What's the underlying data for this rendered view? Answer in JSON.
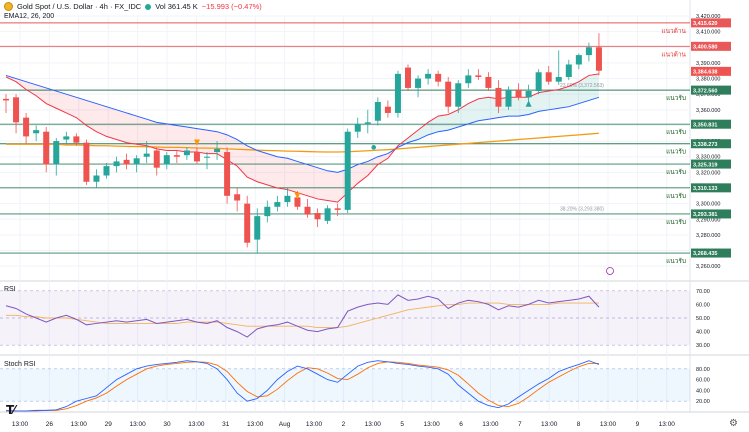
{
  "header": {
    "symbol": "Gold Spot / U.S. Dollar · 4h · FX_IDC",
    "volume": "Vol 361.45 K",
    "change": "−15.993 (−0.47%)",
    "ema_label": "EMA12, 26, 200"
  },
  "colors": {
    "up": "#26a69a",
    "down": "#ef5350",
    "ema12": "#f23645",
    "ema26": "#2962ff",
    "ema200": "#f29b12",
    "support": "#2e7d5b",
    "resistance": "#e85858",
    "rsi_line": "#7e57c2",
    "rsi_ma": "#f2b35b",
    "stoch_k": "#2962ff",
    "stoch_d": "#ff6d00"
  },
  "chart_data": [
    {
      "type": "candlestick",
      "ylim": [
        3255,
        3420
      ],
      "y_ticks": [
        3260,
        3270,
        3280,
        3290,
        3300,
        3310,
        3320,
        3330,
        3340,
        3350,
        3360,
        3370,
        3380,
        3390,
        3400,
        3410,
        3420
      ],
      "x_tick_labels": [
        "13:00",
        "26",
        "13:00",
        "29",
        "13:00",
        "30",
        "13:00",
        "31",
        "13:00",
        "Aug",
        "13:00",
        "2",
        "13:00",
        "5",
        "13:00",
        "6",
        "13:00",
        "7",
        "13:00",
        "8",
        "13:00",
        "9",
        "13:00"
      ],
      "candles": [
        {
          "o": 3367,
          "h": 3370,
          "l": 3358,
          "c": 3366
        },
        {
          "o": 3368,
          "h": 3370,
          "l": 3345,
          "c": 3352
        },
        {
          "o": 3355,
          "h": 3358,
          "l": 3338,
          "c": 3343
        },
        {
          "o": 3345,
          "h": 3350,
          "l": 3340,
          "c": 3347
        },
        {
          "o": 3346,
          "h": 3349,
          "l": 3320,
          "c": 3325
        },
        {
          "o": 3325,
          "h": 3342,
          "l": 3318,
          "c": 3340
        },
        {
          "o": 3341,
          "h": 3346,
          "l": 3338,
          "c": 3343
        },
        {
          "o": 3343,
          "h": 3345,
          "l": 3337,
          "c": 3339
        },
        {
          "o": 3339,
          "h": 3341,
          "l": 3312,
          "c": 3314
        },
        {
          "o": 3314,
          "h": 3322,
          "l": 3310,
          "c": 3318
        },
        {
          "o": 3318,
          "h": 3326,
          "l": 3316,
          "c": 3324
        },
        {
          "o": 3324,
          "h": 3330,
          "l": 3320,
          "c": 3327
        },
        {
          "o": 3328,
          "h": 3332,
          "l": 3322,
          "c": 3325
        },
        {
          "o": 3325,
          "h": 3331,
          "l": 3320,
          "c": 3329
        },
        {
          "o": 3330,
          "h": 3340,
          "l": 3326,
          "c": 3332
        },
        {
          "o": 3334,
          "h": 3336,
          "l": 3318,
          "c": 3323
        },
        {
          "o": 3325,
          "h": 3333,
          "l": 3322,
          "c": 3331
        },
        {
          "o": 3331,
          "h": 3334,
          "l": 3326,
          "c": 3330
        },
        {
          "o": 3331,
          "h": 3336,
          "l": 3328,
          "c": 3334
        },
        {
          "o": 3333,
          "h": 3336,
          "l": 3325,
          "c": 3327
        },
        {
          "o": 3330,
          "h": 3333,
          "l": 3322,
          "c": 3330
        },
        {
          "o": 3333,
          "h": 3340,
          "l": 3328,
          "c": 3335
        },
        {
          "o": 3333,
          "h": 3336,
          "l": 3300,
          "c": 3305
        },
        {
          "o": 3306,
          "h": 3310,
          "l": 3295,
          "c": 3302
        },
        {
          "o": 3300,
          "h": 3305,
          "l": 3272,
          "c": 3275
        },
        {
          "o": 3277,
          "h": 3297,
          "l": 3268,
          "c": 3292
        },
        {
          "o": 3292,
          "h": 3302,
          "l": 3288,
          "c": 3298
        },
        {
          "o": 3298,
          "h": 3305,
          "l": 3295,
          "c": 3301
        },
        {
          "o": 3301,
          "h": 3310,
          "l": 3298,
          "c": 3305
        },
        {
          "o": 3304,
          "h": 3308,
          "l": 3296,
          "c": 3298
        },
        {
          "o": 3298,
          "h": 3303,
          "l": 3291,
          "c": 3293
        },
        {
          "o": 3294,
          "h": 3297,
          "l": 3285,
          "c": 3290
        },
        {
          "o": 3289,
          "h": 3299,
          "l": 3287,
          "c": 3297
        },
        {
          "o": 3297,
          "h": 3300,
          "l": 3292,
          "c": 3296
        },
        {
          "o": 3296,
          "h": 3348,
          "l": 3294,
          "c": 3346
        },
        {
          "o": 3346,
          "h": 3355,
          "l": 3342,
          "c": 3351
        },
        {
          "o": 3351,
          "h": 3360,
          "l": 3345,
          "c": 3352
        },
        {
          "o": 3353,
          "h": 3368,
          "l": 3350,
          "c": 3365
        },
        {
          "o": 3362,
          "h": 3366,
          "l": 3355,
          "c": 3358
        },
        {
          "o": 3358,
          "h": 3385,
          "l": 3355,
          "c": 3383
        },
        {
          "o": 3387,
          "h": 3389,
          "l": 3372,
          "c": 3374
        },
        {
          "o": 3374,
          "h": 3382,
          "l": 3368,
          "c": 3380
        },
        {
          "o": 3380,
          "h": 3386,
          "l": 3376,
          "c": 3383
        },
        {
          "o": 3383,
          "h": 3385,
          "l": 3375,
          "c": 3378
        },
        {
          "o": 3378,
          "h": 3381,
          "l": 3358,
          "c": 3362
        },
        {
          "o": 3362,
          "h": 3379,
          "l": 3358,
          "c": 3377
        },
        {
          "o": 3377,
          "h": 3386,
          "l": 3374,
          "c": 3382
        },
        {
          "o": 3382,
          "h": 3386,
          "l": 3379,
          "c": 3381
        },
        {
          "o": 3381,
          "h": 3384,
          "l": 3372,
          "c": 3374
        },
        {
          "o": 3374,
          "h": 3379,
          "l": 3358,
          "c": 3362
        },
        {
          "o": 3362,
          "h": 3375,
          "l": 3360,
          "c": 3373
        },
        {
          "o": 3373,
          "h": 3377,
          "l": 3366,
          "c": 3368
        },
        {
          "o": 3368,
          "h": 3376,
          "l": 3365,
          "c": 3372
        },
        {
          "o": 3372,
          "h": 3386,
          "l": 3370,
          "c": 3384
        },
        {
          "o": 3384,
          "h": 3388,
          "l": 3376,
          "c": 3378
        },
        {
          "o": 3378,
          "h": 3398,
          "l": 3376,
          "c": 3381
        },
        {
          "o": 3381,
          "h": 3392,
          "l": 3379,
          "c": 3389
        },
        {
          "o": 3389,
          "h": 3396,
          "l": 3386,
          "c": 3395
        },
        {
          "o": 3395,
          "h": 3403,
          "l": 3391,
          "c": 3400
        },
        {
          "o": 3400,
          "h": 3409,
          "l": 3382,
          "c": 3385
        }
      ],
      "ema12": [
        3381,
        3378,
        3373,
        3369,
        3364,
        3361,
        3358,
        3355,
        3350,
        3346,
        3343,
        3341,
        3339,
        3338,
        3337,
        3335,
        3334,
        3334,
        3333,
        3333,
        3332,
        3332,
        3328,
        3324,
        3317,
        3314,
        3312,
        3310,
        3309,
        3307,
        3305,
        3303,
        3302,
        3301,
        3307,
        3313,
        3318,
        3325,
        3329,
        3337,
        3342,
        3347,
        3352,
        3356,
        3357,
        3360,
        3364,
        3367,
        3368,
        3367,
        3368,
        3368,
        3368,
        3371,
        3372,
        3373,
        3375,
        3378,
        3382,
        3383
      ],
      "ema26": [
        3382,
        3380,
        3378,
        3376,
        3374,
        3372,
        3370,
        3368,
        3366,
        3364,
        3362,
        3360,
        3358,
        3356,
        3354,
        3352,
        3351,
        3350,
        3349,
        3348,
        3347,
        3346,
        3344,
        3341,
        3337,
        3334,
        3332,
        3330,
        3329,
        3327,
        3325,
        3323,
        3321,
        3320,
        3322,
        3325,
        3327,
        3330,
        3332,
        3336,
        3339,
        3341,
        3344,
        3346,
        3347,
        3349,
        3351,
        3353,
        3354,
        3355,
        3356,
        3356,
        3357,
        3359,
        3360,
        3361,
        3362,
        3364,
        3366,
        3368
      ],
      "ema200": [
        3338,
        3338,
        3338,
        3338,
        3338,
        3338,
        3337.5,
        3337.5,
        3337.3,
        3337,
        3337,
        3336.8,
        3336.6,
        3336.5,
        3336.4,
        3336.2,
        3336,
        3336,
        3335.8,
        3335.6,
        3335.5,
        3335.4,
        3335,
        3334.8,
        3334.5,
        3334.2,
        3334,
        3333.8,
        3333.6,
        3333.5,
        3333.3,
        3333.1,
        3333,
        3333,
        3333.2,
        3333.5,
        3333.8,
        3334.2,
        3334.5,
        3335,
        3335.5,
        3336,
        3336.5,
        3337,
        3337.5,
        3338,
        3338.5,
        3339,
        3339.5,
        3340,
        3340.5,
        3341,
        3341.5,
        3342,
        3342.5,
        3343,
        3343.5,
        3344,
        3344.5,
        3345
      ],
      "resistance_levels": [
        {
          "price_label": "3,415.620",
          "name": "แนวต้าน",
          "value": 3415.6
        },
        {
          "price_label": "3,400.580",
          "name": "แนวต้าน",
          "value": 3400.6
        }
      ],
      "support_levels": [
        {
          "price_label": "3,372.560",
          "name": "แนวรับ",
          "value": 3372.6
        },
        {
          "price_label": "3,350.831",
          "name": "แนวรับ",
          "value": 3350.8
        },
        {
          "price_label": "3,338.273",
          "name": "แนวรับ",
          "value": 3338.3
        },
        {
          "price_label": "3,325.319",
          "name": "แนวรับ",
          "value": 3325.3
        },
        {
          "price_label": "3,310.133",
          "name": "แนวรับ",
          "value": 3310.1
        },
        {
          "price_label": "3,293.381",
          "name": "แนวรับ",
          "value": 3293.4
        },
        {
          "price_label": "3,268.435",
          "name": "แนวรับ",
          "value": 3268.4
        }
      ],
      "current_price_label": "3,384.638",
      "current_price": 3384.6,
      "fib_labels": [
        {
          "text": "23.60% (3,372.563)",
          "value": 3374
        },
        {
          "text": "38.20% (3,293.380)",
          "value": 3295
        }
      ]
    },
    {
      "type": "line",
      "name": "RSI",
      "ylim": [
        25,
        75
      ],
      "y_ticks": [
        30,
        40,
        50,
        60,
        70
      ],
      "band": [
        30,
        70
      ],
      "rsi": [
        59,
        57,
        53,
        50,
        47,
        50,
        52,
        49,
        45,
        46,
        47,
        48,
        47,
        48,
        49,
        46,
        47,
        48,
        49,
        47,
        46,
        48,
        43,
        40,
        36,
        42,
        44,
        45,
        47,
        44,
        41,
        40,
        42,
        43,
        55,
        58,
        60,
        61,
        60,
        67,
        63,
        64,
        66,
        64,
        57,
        61,
        63,
        62,
        60,
        56,
        59,
        58,
        60,
        63,
        61,
        62,
        63,
        64,
        66,
        58
      ],
      "rsi_ma": [
        52,
        52,
        51,
        51,
        50,
        50,
        50,
        49,
        48,
        47,
        46,
        46,
        46,
        46,
        46,
        46,
        46,
        46,
        47,
        47,
        47,
        47,
        46,
        45,
        44,
        44,
        44,
        44,
        44,
        44,
        44,
        43,
        43,
        43,
        44,
        46,
        48,
        50,
        52,
        54,
        56,
        57,
        58,
        59,
        60,
        60,
        61,
        61,
        61,
        61,
        60,
        60,
        60,
        60,
        60,
        61,
        61,
        61,
        61,
        61
      ]
    },
    {
      "type": "line",
      "name": "Stoch RSI",
      "ylim": [
        0,
        100
      ],
      "y_ticks": [
        20,
        40,
        60,
        80
      ],
      "band": [
        20,
        80
      ],
      "k": [
        2,
        2,
        2,
        3,
        3,
        4,
        10,
        20,
        25,
        30,
        45,
        60,
        70,
        80,
        85,
        88,
        90,
        92,
        95,
        93,
        90,
        80,
        60,
        35,
        20,
        25,
        40,
        60,
        75,
        85,
        80,
        70,
        60,
        55,
        70,
        85,
        92,
        95,
        93,
        90,
        88,
        85,
        83,
        80,
        70,
        50,
        35,
        20,
        12,
        8,
        15,
        28,
        40,
        52,
        62,
        75,
        82,
        88,
        95,
        88
      ],
      "d": [
        3,
        2,
        2,
        2,
        3,
        3,
        6,
        12,
        20,
        26,
        35,
        48,
        60,
        70,
        80,
        85,
        88,
        90,
        92,
        93,
        92,
        87,
        75,
        55,
        38,
        28,
        30,
        42,
        58,
        72,
        82,
        80,
        72,
        62,
        60,
        70,
        82,
        90,
        93,
        92,
        90,
        87,
        85,
        83,
        78,
        68,
        52,
        35,
        22,
        12,
        10,
        16,
        28,
        42,
        55,
        65,
        75,
        84,
        90,
        90
      ]
    }
  ]
}
